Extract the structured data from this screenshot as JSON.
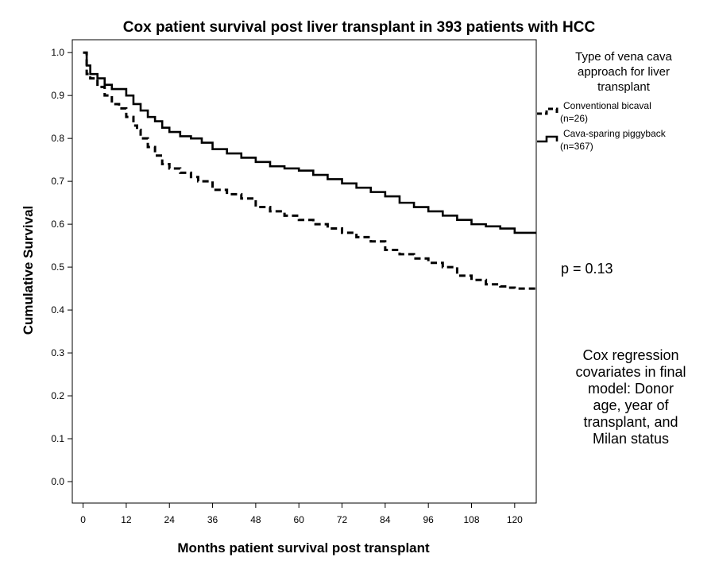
{
  "chart_data": {
    "type": "line",
    "title": "Cox patient survival post liver transplant in 393 patients with HCC",
    "xlabel": "Months patient survival post transplant",
    "ylabel": "Cumulative Survival",
    "xlim": [
      -3,
      126
    ],
    "ylim": [
      -0.05,
      1.03
    ],
    "x_ticks": [
      "0",
      "12",
      "24",
      "36",
      "48",
      "60",
      "72",
      "84",
      "96",
      "108",
      "120"
    ],
    "y_ticks": [
      "0.0",
      "0.1",
      "0.2",
      "0.3",
      "0.4",
      "0.5",
      "0.6",
      "0.7",
      "0.8",
      "0.9",
      "1.0"
    ],
    "grid": false,
    "step": true,
    "legend": {
      "title": [
        "Type of vena cava",
        "approach for liver",
        "transplant"
      ],
      "placement": "right"
    },
    "series": [
      {
        "name": "Conventional bicaval",
        "n_label": "(n=26)",
        "style": "dashed",
        "x": [
          0,
          1,
          2,
          4,
          6,
          8,
          10,
          12,
          14,
          15,
          16,
          18,
          20,
          22,
          24,
          27,
          30,
          32,
          36,
          40,
          44,
          48,
          52,
          56,
          60,
          64,
          68,
          72,
          76,
          80,
          84,
          88,
          92,
          96,
          100,
          104,
          108,
          112,
          116,
          118,
          120,
          126
        ],
        "y": [
          1.0,
          0.95,
          0.94,
          0.92,
          0.9,
          0.88,
          0.87,
          0.85,
          0.83,
          0.82,
          0.8,
          0.78,
          0.76,
          0.74,
          0.73,
          0.72,
          0.71,
          0.7,
          0.68,
          0.67,
          0.66,
          0.64,
          0.63,
          0.62,
          0.61,
          0.6,
          0.59,
          0.58,
          0.57,
          0.56,
          0.54,
          0.53,
          0.52,
          0.51,
          0.5,
          0.48,
          0.47,
          0.46,
          0.455,
          0.452,
          0.45,
          0.45
        ]
      },
      {
        "name": "Cava-sparing piggyback",
        "n_label": "(n=367)",
        "style": "solid",
        "x": [
          0,
          1,
          2,
          4,
          6,
          8,
          12,
          14,
          16,
          18,
          20,
          22,
          24,
          27,
          30,
          33,
          36,
          40,
          44,
          48,
          52,
          56,
          60,
          64,
          68,
          72,
          76,
          80,
          84,
          88,
          92,
          96,
          100,
          104,
          108,
          112,
          116,
          120,
          126
        ],
        "y": [
          1.0,
          0.97,
          0.95,
          0.94,
          0.925,
          0.915,
          0.9,
          0.88,
          0.865,
          0.85,
          0.84,
          0.825,
          0.815,
          0.805,
          0.8,
          0.79,
          0.775,
          0.765,
          0.755,
          0.745,
          0.735,
          0.73,
          0.725,
          0.715,
          0.705,
          0.695,
          0.685,
          0.675,
          0.665,
          0.65,
          0.64,
          0.63,
          0.62,
          0.61,
          0.6,
          0.595,
          0.59,
          0.58,
          0.58
        ]
      }
    ],
    "annotations": {
      "p_value": "p = 0.13",
      "note": [
        "Cox regression",
        "covariates in final",
        "model: Donor",
        "age, year of",
        "transplant, and",
        "Milan status"
      ]
    }
  }
}
